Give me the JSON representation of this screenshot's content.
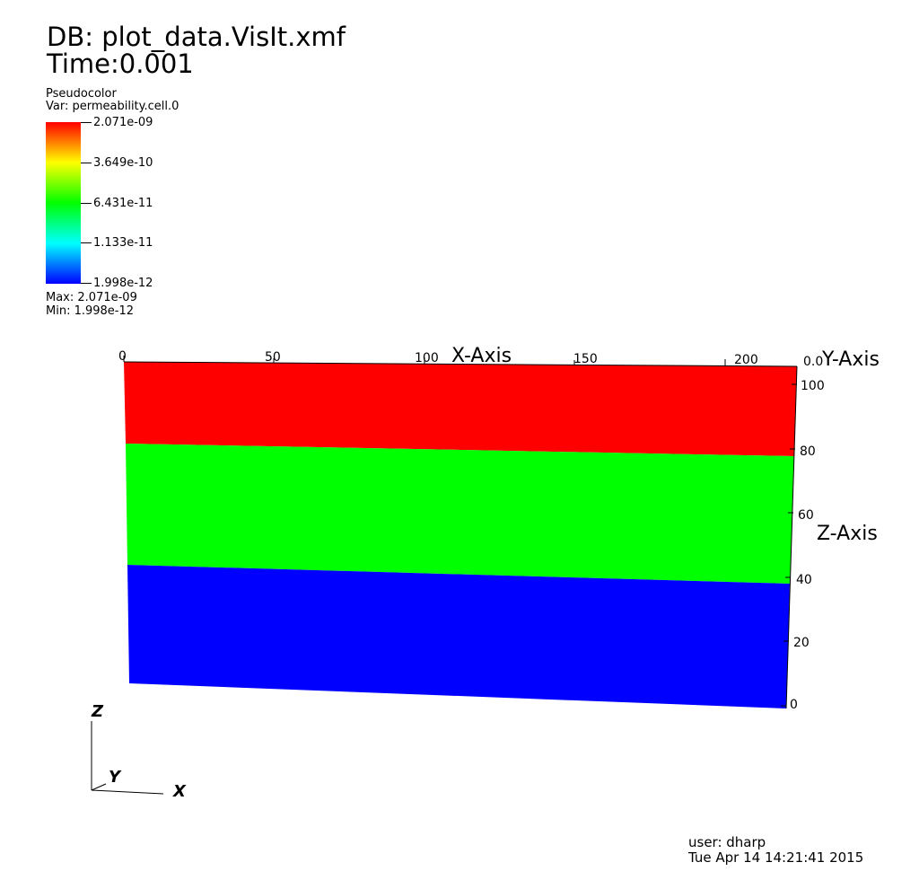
{
  "header": {
    "db": "DB: plot_data.VisIt.xmf",
    "time": "Time:0.001"
  },
  "legend": {
    "plot_type": "Pseudocolor",
    "variable": "Var: permeability.cell.0",
    "ticks": [
      "2.071e-09",
      "3.649e-10",
      "6.431e-11",
      "1.133e-11",
      "1.998e-12"
    ],
    "max": "Max:  2.071e-09",
    "min": "Min:  1.998e-12",
    "colors": [
      "#ff0000",
      "#ffff00",
      "#00ff00",
      "#00ffff",
      "#0000ff"
    ]
  },
  "plot": {
    "x_axis_title": "X-Axis",
    "y_axis_title": "Y-Axis",
    "z_axis_title": "Z-Axis",
    "x_ticks": [
      "0",
      "50",
      "100",
      "150",
      "200"
    ],
    "z_ticks": [
      "0",
      "20",
      "40",
      "60",
      "80",
      "100"
    ],
    "y_tick_overlap": "0.0",
    "layers": [
      {
        "color": "#ff0000"
      },
      {
        "color": "#00ff00"
      },
      {
        "color": "#0000ff"
      }
    ]
  },
  "triad": {
    "z_label": "Z",
    "y_label": "Y",
    "x_label": "X"
  },
  "footer": {
    "user": "user: dharp",
    "timestamp": "Tue Apr 14 14:21:41 2015"
  }
}
